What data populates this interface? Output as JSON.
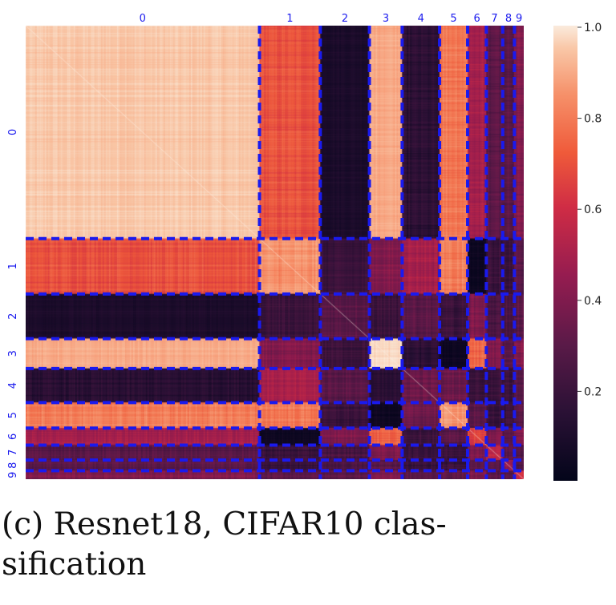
{
  "chart_data": {
    "type": "heatmap",
    "title": "",
    "xlabel": "",
    "ylabel": "",
    "classes": [
      "0",
      "1",
      "2",
      "3",
      "4",
      "5",
      "6",
      "7",
      "8",
      "9"
    ],
    "class_sizes": [
      1000,
      260,
      210,
      140,
      160,
      120,
      80,
      70,
      50,
      40
    ],
    "class_self_similarity": [
      0.95,
      0.85,
      0.3,
      0.98,
      0.35,
      0.85,
      0.65,
      0.55,
      0.45,
      0.6
    ],
    "block_similarity": [
      [
        0.95,
        0.7,
        0.1,
        0.9,
        0.15,
        0.8,
        0.5,
        0.3,
        0.3,
        0.4
      ],
      [
        0.7,
        0.85,
        0.2,
        0.4,
        0.5,
        0.8,
        0.05,
        0.2,
        0.2,
        0.3
      ],
      [
        0.1,
        0.2,
        0.3,
        0.2,
        0.3,
        0.2,
        0.4,
        0.25,
        0.25,
        0.3
      ],
      [
        0.9,
        0.4,
        0.2,
        0.98,
        0.15,
        0.05,
        0.75,
        0.4,
        0.3,
        0.4
      ],
      [
        0.15,
        0.5,
        0.3,
        0.15,
        0.35,
        0.35,
        0.2,
        0.2,
        0.2,
        0.3
      ],
      [
        0.8,
        0.8,
        0.2,
        0.05,
        0.35,
        0.85,
        0.3,
        0.2,
        0.2,
        0.3
      ],
      [
        0.5,
        0.05,
        0.4,
        0.75,
        0.2,
        0.3,
        0.65,
        0.4,
        0.3,
        0.4
      ],
      [
        0.3,
        0.2,
        0.25,
        0.4,
        0.2,
        0.2,
        0.4,
        0.55,
        0.3,
        0.3
      ],
      [
        0.3,
        0.2,
        0.25,
        0.3,
        0.2,
        0.2,
        0.3,
        0.3,
        0.45,
        0.3
      ],
      [
        0.4,
        0.3,
        0.3,
        0.4,
        0.3,
        0.3,
        0.4,
        0.3,
        0.3,
        0.6
      ]
    ],
    "colorbar": {
      "ticks": [
        "1.0",
        "0.8",
        "0.6",
        "0.4",
        "0.2"
      ],
      "tick_values": [
        1.0,
        0.8,
        0.6,
        0.4,
        0.2
      ],
      "range": [
        0.0,
        1.0
      ],
      "colormap": "rocket"
    },
    "block_divider_color": "#1a1aee",
    "tick_label_color": "#1a1aee"
  },
  "caption": {
    "line1": "(c) Resnet18, CIFAR10 clas-",
    "line2": "sification"
  }
}
